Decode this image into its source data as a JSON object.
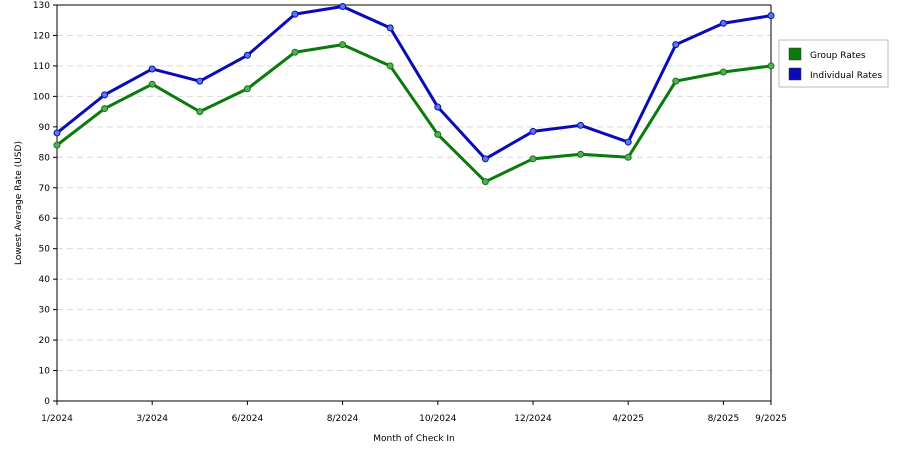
{
  "chart_data": {
    "type": "line",
    "xlabel": "Month of Check In",
    "ylabel": "Lowest Average Rate (USD)",
    "ylim": [
      0,
      130
    ],
    "yticks": [
      0,
      10,
      20,
      30,
      40,
      50,
      60,
      70,
      80,
      90,
      100,
      110,
      120,
      130
    ],
    "x": [
      "1/2024",
      "2/2024",
      "3/2024",
      "4/2024",
      "6/2024",
      "7/2024",
      "8/2024",
      "9/2024",
      "10/2024",
      "11/2024",
      "12/2024",
      "1/2025",
      "4/2025",
      "5/2025",
      "8/2025",
      "9/2025"
    ],
    "xtick_labels": [
      {
        "index": 0,
        "label": "1/2024"
      },
      {
        "index": 2,
        "label": "3/2024"
      },
      {
        "index": 4,
        "label": "6/2024"
      },
      {
        "index": 6,
        "label": "8/2024"
      },
      {
        "index": 8,
        "label": "10/2024"
      },
      {
        "index": 10,
        "label": "12/2024"
      },
      {
        "index": 12,
        "label": "4/2025"
      },
      {
        "index": 14,
        "label": "8/2025"
      },
      {
        "index": 15,
        "label": "9/2025"
      }
    ],
    "grid": true,
    "legend_position": "right-top",
    "series": [
      {
        "name": "Group Rates",
        "color": "#0a7a0a",
        "marker_color": "#5aaa5a",
        "values": [
          84,
          96,
          104,
          95,
          102.5,
          114.5,
          117,
          110,
          87.5,
          72,
          79.5,
          81,
          80,
          105,
          108,
          110
        ]
      },
      {
        "name": "Individual Rates",
        "color": "#0a0aba",
        "marker_color": "#5a7ae0",
        "values": [
          88,
          100.5,
          109,
          105,
          113.5,
          127,
          129.5,
          122.5,
          96.5,
          79.5,
          88.5,
          90.5,
          85,
          117,
          124,
          126.5
        ]
      }
    ]
  }
}
